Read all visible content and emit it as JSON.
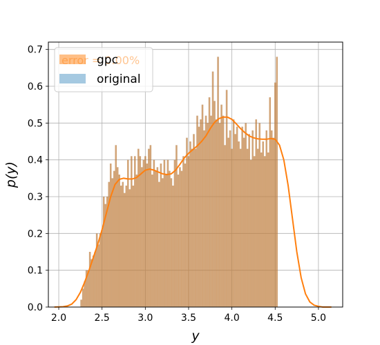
{
  "chart_data": {
    "type": "histogram+kde",
    "xlabel": "y",
    "ylabel": "p(y)",
    "xlim": [
      1.88,
      5.28
    ],
    "ylim": [
      0,
      0.72
    ],
    "xticks": [
      "2.0",
      "2.5",
      "3.0",
      "3.5",
      "4.0",
      "4.5",
      "5.0"
    ],
    "yticks": [
      "0.0",
      "0.1",
      "0.2",
      "0.3",
      "0.4",
      "0.5",
      "0.6",
      "0.7"
    ],
    "grid": true,
    "legend_position": "upper-left",
    "annotation": "error = 0.00%",
    "bin_edges_start": 2.25,
    "bin_width": 0.02,
    "series": [
      {
        "name": "gpc",
        "kind": "histogram",
        "color": "#ff7f0e",
        "values": [
          0.02,
          0.05,
          0.07,
          0.1,
          0.1,
          0.15,
          0.13,
          0.14,
          0.15,
          0.2,
          0.17,
          0.2,
          0.21,
          0.3,
          0.28,
          0.3,
          0.34,
          0.39,
          0.35,
          0.37,
          0.44,
          0.38,
          0.36,
          0.33,
          0.34,
          0.31,
          0.33,
          0.4,
          0.32,
          0.41,
          0.33,
          0.41,
          0.36,
          0.43,
          0.41,
          0.38,
          0.4,
          0.41,
          0.39,
          0.43,
          0.44,
          0.36,
          0.4,
          0.37,
          0.38,
          0.34,
          0.39,
          0.35,
          0.4,
          0.36,
          0.4,
          0.37,
          0.35,
          0.33,
          0.4,
          0.44,
          0.36,
          0.38,
          0.37,
          0.41,
          0.39,
          0.46,
          0.41,
          0.45,
          0.43,
          0.47,
          0.43,
          0.52,
          0.49,
          0.51,
          0.55,
          0.48,
          0.52,
          0.5,
          0.57,
          0.52,
          0.64,
          0.56,
          0.51,
          0.68,
          0.5,
          0.55,
          0.52,
          0.44,
          0.59,
          0.46,
          0.48,
          0.43,
          0.51,
          0.47,
          0.49,
          0.45,
          0.43,
          0.49,
          0.46,
          0.5,
          0.43,
          0.47,
          0.4,
          0.48,
          0.41,
          0.51,
          0.43,
          0.5,
          0.42,
          0.45,
          0.41,
          0.48,
          0.42,
          0.57,
          0.48,
          0.46,
          0.61,
          0.68
        ]
      },
      {
        "name": "original",
        "kind": "histogram",
        "color": "#1f77b4",
        "values": [
          0.02,
          0.05,
          0.07,
          0.1,
          0.1,
          0.15,
          0.13,
          0.14,
          0.15,
          0.2,
          0.17,
          0.2,
          0.21,
          0.3,
          0.28,
          0.3,
          0.34,
          0.39,
          0.35,
          0.37,
          0.44,
          0.38,
          0.36,
          0.33,
          0.34,
          0.31,
          0.33,
          0.4,
          0.32,
          0.41,
          0.33,
          0.41,
          0.36,
          0.43,
          0.41,
          0.38,
          0.4,
          0.41,
          0.39,
          0.43,
          0.44,
          0.36,
          0.4,
          0.37,
          0.38,
          0.34,
          0.39,
          0.35,
          0.4,
          0.36,
          0.4,
          0.37,
          0.35,
          0.33,
          0.4,
          0.44,
          0.36,
          0.38,
          0.37,
          0.41,
          0.39,
          0.46,
          0.41,
          0.45,
          0.43,
          0.47,
          0.43,
          0.52,
          0.49,
          0.51,
          0.55,
          0.48,
          0.52,
          0.5,
          0.57,
          0.52,
          0.64,
          0.56,
          0.51,
          0.68,
          0.5,
          0.55,
          0.52,
          0.44,
          0.59,
          0.46,
          0.48,
          0.43,
          0.51,
          0.47,
          0.49,
          0.45,
          0.43,
          0.49,
          0.46,
          0.5,
          0.43,
          0.47,
          0.4,
          0.48,
          0.41,
          0.51,
          0.43,
          0.5,
          0.42,
          0.45,
          0.41,
          0.48,
          0.42,
          0.57,
          0.48,
          0.46,
          0.61,
          0.68
        ]
      },
      {
        "kind": "kde",
        "color": "#ff7f0e",
        "x": [
          1.95,
          2.05,
          2.1,
          2.15,
          2.2,
          2.25,
          2.3,
          2.35,
          2.4,
          2.45,
          2.5,
          2.55,
          2.6,
          2.65,
          2.7,
          2.75,
          2.8,
          2.85,
          2.9,
          2.95,
          3.0,
          3.05,
          3.1,
          3.15,
          3.2,
          3.25,
          3.3,
          3.35,
          3.4,
          3.45,
          3.5,
          3.55,
          3.6,
          3.65,
          3.7,
          3.75,
          3.8,
          3.85,
          3.9,
          3.95,
          4.0,
          4.05,
          4.1,
          4.15,
          4.2,
          4.25,
          4.3,
          4.35,
          4.4,
          4.45,
          4.5,
          4.55,
          4.6,
          4.65,
          4.7,
          4.75,
          4.8,
          4.85,
          4.9,
          4.95,
          5.0,
          5.05,
          5.1,
          5.15
        ],
        "y": [
          0.0,
          0.001,
          0.003,
          0.008,
          0.02,
          0.04,
          0.068,
          0.1,
          0.135,
          0.17,
          0.21,
          0.255,
          0.3,
          0.333,
          0.347,
          0.35,
          0.348,
          0.348,
          0.352,
          0.362,
          0.372,
          0.375,
          0.372,
          0.367,
          0.362,
          0.36,
          0.362,
          0.372,
          0.388,
          0.405,
          0.418,
          0.428,
          0.438,
          0.45,
          0.465,
          0.485,
          0.502,
          0.512,
          0.516,
          0.516,
          0.51,
          0.498,
          0.485,
          0.474,
          0.465,
          0.46,
          0.457,
          0.456,
          0.456,
          0.458,
          0.456,
          0.44,
          0.4,
          0.33,
          0.24,
          0.15,
          0.08,
          0.036,
          0.014,
          0.005,
          0.002,
          0.0,
          0.0,
          0.0
        ]
      }
    ]
  }
}
